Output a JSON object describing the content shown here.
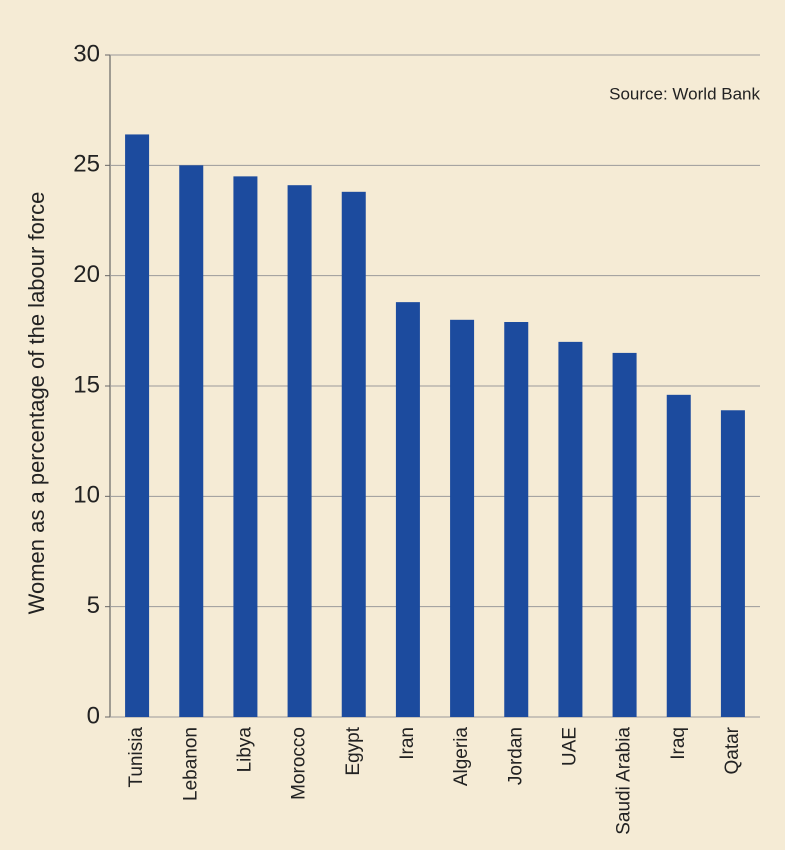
{
  "chart_data": {
    "type": "bar",
    "y_label": "Women as a percentage of the labour force",
    "annotation": "Source: World Bank",
    "categories": [
      "Tunisia",
      "Lebanon",
      "Libya",
      "Morocco",
      "Egypt",
      "Iran",
      "Algeria",
      "Jordan",
      "UAE",
      "Saudi Arabia",
      "Iraq",
      "Qatar"
    ],
    "values": [
      26.4,
      25.0,
      24.5,
      24.1,
      23.8,
      18.8,
      18.0,
      17.9,
      17.0,
      16.5,
      14.6,
      13.9
    ],
    "color": "#1c4b9e",
    "ylim": [
      0,
      30
    ],
    "yticks": [
      0,
      5,
      10,
      15,
      20,
      25,
      30
    ],
    "grid": true
  }
}
